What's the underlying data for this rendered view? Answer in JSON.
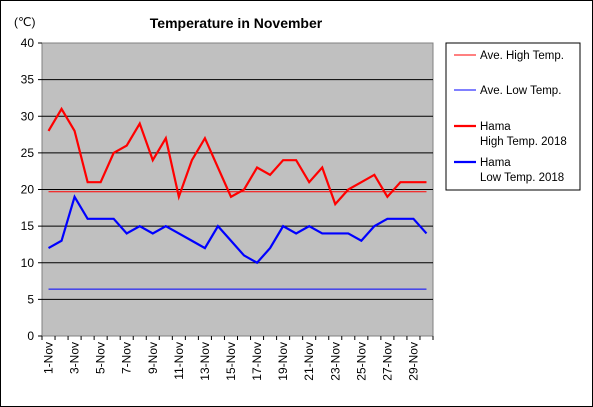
{
  "chart_data": {
    "type": "line",
    "title": "Temperature in November",
    "unit_label": "(℃)",
    "ylim": [
      0,
      40
    ],
    "yticks": [
      "0",
      "5",
      "10",
      "15",
      "20",
      "25",
      "30",
      "35",
      "40"
    ],
    "x": [
      "1-Nov",
      "2-Nov",
      "3-Nov",
      "4-Nov",
      "5-Nov",
      "6-Nov",
      "7-Nov",
      "8-Nov",
      "9-Nov",
      "10-Nov",
      "11-Nov",
      "12-Nov",
      "13-Nov",
      "14-Nov",
      "15-Nov",
      "16-Nov",
      "17-Nov",
      "18-Nov",
      "19-Nov",
      "20-Nov",
      "21-Nov",
      "22-Nov",
      "23-Nov",
      "24-Nov",
      "25-Nov",
      "26-Nov",
      "27-Nov",
      "28-Nov",
      "29-Nov",
      "30-Nov"
    ],
    "xtick_labels": [
      "1-Nov",
      "3-Nov",
      "5-Nov",
      "7-Nov",
      "9-Nov",
      "11-Nov",
      "13-Nov",
      "15-Nov",
      "17-Nov",
      "19-Nov",
      "21-Nov",
      "23-Nov",
      "25-Nov",
      "27-Nov",
      "29-Nov"
    ],
    "grid": true,
    "plot_background": "#c0c0c0",
    "legend_position": "right",
    "series": [
      {
        "name": "Ave. High Temp.",
        "legend_lines": [
          "Ave. High Temp."
        ],
        "color": "#ff0000",
        "stroke": "thin",
        "values": [
          19.7,
          19.7,
          19.7,
          19.7,
          19.7,
          19.7,
          19.7,
          19.7,
          19.7,
          19.7,
          19.7,
          19.7,
          19.7,
          19.7,
          19.7,
          19.7,
          19.7,
          19.7,
          19.7,
          19.7,
          19.7,
          19.7,
          19.7,
          19.7,
          19.7,
          19.7,
          19.7,
          19.7,
          19.7,
          19.7
        ]
      },
      {
        "name": "Ave. Low Temp.",
        "legend_lines": [
          "Ave. Low Temp."
        ],
        "color": "#0000ff",
        "stroke": "thin",
        "values": [
          6.4,
          6.4,
          6.4,
          6.4,
          6.4,
          6.4,
          6.4,
          6.4,
          6.4,
          6.4,
          6.4,
          6.4,
          6.4,
          6.4,
          6.4,
          6.4,
          6.4,
          6.4,
          6.4,
          6.4,
          6.4,
          6.4,
          6.4,
          6.4,
          6.4,
          6.4,
          6.4,
          6.4,
          6.4,
          6.4
        ]
      },
      {
        "name": "Hama High Temp. 2018",
        "legend_lines": [
          "Hama",
          "High Temp. 2018"
        ],
        "color": "#ff0000",
        "stroke": "thick",
        "values": [
          28,
          31,
          28,
          21,
          21,
          25,
          26,
          29,
          24,
          27,
          19,
          24,
          27,
          23,
          19,
          20,
          23,
          22,
          24,
          24,
          21,
          23,
          18,
          20,
          21,
          22,
          19,
          21,
          21,
          21
        ]
      },
      {
        "name": "Hama Low Temp. 2018",
        "legend_lines": [
          "Hama",
          "Low Temp. 2018"
        ],
        "color": "#0000ff",
        "stroke": "thick",
        "values": [
          12,
          13,
          19,
          16,
          16,
          16,
          14,
          15,
          14,
          15,
          14,
          13,
          12,
          15,
          13,
          11,
          10,
          12,
          15,
          14,
          15,
          14,
          14,
          14,
          13,
          15,
          16,
          16,
          16,
          14
        ]
      }
    ]
  }
}
